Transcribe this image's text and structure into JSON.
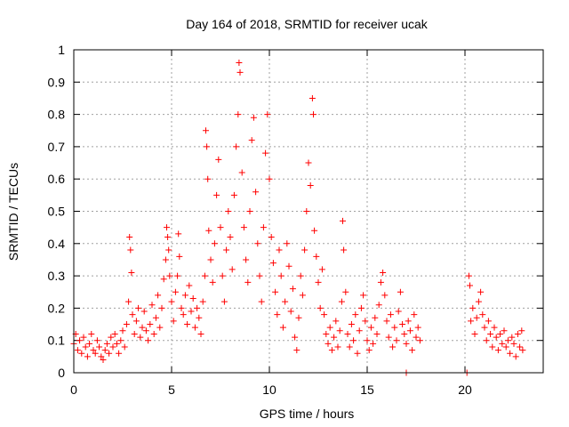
{
  "chart_data": {
    "type": "scatter",
    "title": "Day 164 of 2018, SRMTID for receiver ucak",
    "xlabel": "GPS time / hours",
    "ylabel": "SRMTID / TECUs",
    "xlim": [
      0,
      24
    ],
    "ylim": [
      0,
      1
    ],
    "grid": true,
    "marker": "+",
    "color": "#ff0000",
    "x_ticks": [
      "0",
      "5",
      "10",
      "15",
      "20"
    ],
    "x_tick_values": [
      0,
      5,
      10,
      15,
      20
    ],
    "y_ticks": [
      "0",
      "0.1",
      "0.2",
      "0.3",
      "0.4",
      "0.5",
      "0.6",
      "0.7",
      "0.8",
      "0.9",
      "1"
    ],
    "y_tick_values": [
      0,
      0.1,
      0.2,
      0.3,
      0.4,
      0.5,
      0.6,
      0.7,
      0.8,
      0.9,
      1
    ],
    "series": [
      {
        "name": "SRMTID",
        "points": [
          [
            0.0,
            0.09
          ],
          [
            0.1,
            0.12
          ],
          [
            0.2,
            0.07
          ],
          [
            0.3,
            0.1
          ],
          [
            0.4,
            0.06
          ],
          [
            0.5,
            0.11
          ],
          [
            0.6,
            0.08
          ],
          [
            0.7,
            0.05
          ],
          [
            0.8,
            0.09
          ],
          [
            0.9,
            0.12
          ],
          [
            1.0,
            0.07
          ],
          [
            1.1,
            0.06
          ],
          [
            1.2,
            0.1
          ],
          [
            1.3,
            0.08
          ],
          [
            1.4,
            0.05
          ],
          [
            1.5,
            0.04
          ],
          [
            1.6,
            0.07
          ],
          [
            1.7,
            0.09
          ],
          [
            1.8,
            0.06
          ],
          [
            1.9,
            0.11
          ],
          [
            2.0,
            0.08
          ],
          [
            2.1,
            0.12
          ],
          [
            2.2,
            0.09
          ],
          [
            2.3,
            0.06
          ],
          [
            2.4,
            0.1
          ],
          [
            2.5,
            0.13
          ],
          [
            2.6,
            0.08
          ],
          [
            2.7,
            0.15
          ],
          [
            2.8,
            0.22
          ],
          [
            2.85,
            0.42
          ],
          [
            2.9,
            0.38
          ],
          [
            2.95,
            0.31
          ],
          [
            3.0,
            0.18
          ],
          [
            3.1,
            0.12
          ],
          [
            3.2,
            0.16
          ],
          [
            3.3,
            0.2
          ],
          [
            3.4,
            0.11
          ],
          [
            3.5,
            0.14
          ],
          [
            3.6,
            0.19
          ],
          [
            3.7,
            0.13
          ],
          [
            3.8,
            0.1
          ],
          [
            3.9,
            0.15
          ],
          [
            4.0,
            0.21
          ],
          [
            4.1,
            0.12
          ],
          [
            4.2,
            0.17
          ],
          [
            4.3,
            0.24
          ],
          [
            4.4,
            0.14
          ],
          [
            4.5,
            0.2
          ],
          [
            4.6,
            0.29
          ],
          [
            4.7,
            0.35
          ],
          [
            4.75,
            0.45
          ],
          [
            4.8,
            0.42
          ],
          [
            4.85,
            0.38
          ],
          [
            4.9,
            0.3
          ],
          [
            5.0,
            0.22
          ],
          [
            5.1,
            0.16
          ],
          [
            5.2,
            0.25
          ],
          [
            5.3,
            0.3
          ],
          [
            5.35,
            0.43
          ],
          [
            5.4,
            0.36
          ],
          [
            5.5,
            0.2
          ],
          [
            5.6,
            0.18
          ],
          [
            5.7,
            0.24
          ],
          [
            5.8,
            0.15
          ],
          [
            5.9,
            0.27
          ],
          [
            6.0,
            0.19
          ],
          [
            6.1,
            0.23
          ],
          [
            6.2,
            0.14
          ],
          [
            6.3,
            0.2
          ],
          [
            6.4,
            0.17
          ],
          [
            6.5,
            0.12
          ],
          [
            6.6,
            0.22
          ],
          [
            6.7,
            0.3
          ],
          [
            6.75,
            0.75
          ],
          [
            6.8,
            0.7
          ],
          [
            6.85,
            0.6
          ],
          [
            6.9,
            0.44
          ],
          [
            7.0,
            0.35
          ],
          [
            7.1,
            0.28
          ],
          [
            7.2,
            0.4
          ],
          [
            7.3,
            0.55
          ],
          [
            7.4,
            0.66
          ],
          [
            7.5,
            0.45
          ],
          [
            7.6,
            0.3
          ],
          [
            7.7,
            0.22
          ],
          [
            7.8,
            0.38
          ],
          [
            7.9,
            0.5
          ],
          [
            8.0,
            0.42
          ],
          [
            8.1,
            0.32
          ],
          [
            8.2,
            0.55
          ],
          [
            8.3,
            0.7
          ],
          [
            8.4,
            0.8
          ],
          [
            8.45,
            0.96
          ],
          [
            8.5,
            0.93
          ],
          [
            8.6,
            0.62
          ],
          [
            8.7,
            0.45
          ],
          [
            8.8,
            0.35
          ],
          [
            8.9,
            0.28
          ],
          [
            9.0,
            0.5
          ],
          [
            9.1,
            0.72
          ],
          [
            9.2,
            0.79
          ],
          [
            9.3,
            0.56
          ],
          [
            9.4,
            0.4
          ],
          [
            9.5,
            0.3
          ],
          [
            9.6,
            0.22
          ],
          [
            9.7,
            0.45
          ],
          [
            9.8,
            0.68
          ],
          [
            9.9,
            0.8
          ],
          [
            10.0,
            0.6
          ],
          [
            10.1,
            0.42
          ],
          [
            10.2,
            0.34
          ],
          [
            10.3,
            0.25
          ],
          [
            10.4,
            0.18
          ],
          [
            10.5,
            0.38
          ],
          [
            10.6,
            0.3
          ],
          [
            10.7,
            0.14
          ],
          [
            10.8,
            0.22
          ],
          [
            10.9,
            0.4
          ],
          [
            11.0,
            0.33
          ],
          [
            11.1,
            0.19
          ],
          [
            11.2,
            0.26
          ],
          [
            11.3,
            0.11
          ],
          [
            11.4,
            0.07
          ],
          [
            11.5,
            0.17
          ],
          [
            11.6,
            0.3
          ],
          [
            11.7,
            0.24
          ],
          [
            11.8,
            0.38
          ],
          [
            11.9,
            0.5
          ],
          [
            12.0,
            0.65
          ],
          [
            12.1,
            0.58
          ],
          [
            12.2,
            0.85
          ],
          [
            12.25,
            0.8
          ],
          [
            12.3,
            0.44
          ],
          [
            12.4,
            0.36
          ],
          [
            12.5,
            0.28
          ],
          [
            12.6,
            0.2
          ],
          [
            12.7,
            0.32
          ],
          [
            12.8,
            0.18
          ],
          [
            12.9,
            0.12
          ],
          [
            13.0,
            0.09
          ],
          [
            13.1,
            0.14
          ],
          [
            13.2,
            0.07
          ],
          [
            13.3,
            0.11
          ],
          [
            13.4,
            0.16
          ],
          [
            13.5,
            0.08
          ],
          [
            13.6,
            0.13
          ],
          [
            13.7,
            0.22
          ],
          [
            13.75,
            0.47
          ],
          [
            13.8,
            0.38
          ],
          [
            13.9,
            0.25
          ],
          [
            14.0,
            0.12
          ],
          [
            14.1,
            0.08
          ],
          [
            14.2,
            0.15
          ],
          [
            14.3,
            0.1
          ],
          [
            14.4,
            0.18
          ],
          [
            14.5,
            0.06
          ],
          [
            14.6,
            0.13
          ],
          [
            14.7,
            0.2
          ],
          [
            14.8,
            0.24
          ],
          [
            14.9,
            0.16
          ],
          [
            15.0,
            0.1
          ],
          [
            15.1,
            0.07
          ],
          [
            15.2,
            0.14
          ],
          [
            15.3,
            0.09
          ],
          [
            15.4,
            0.17
          ],
          [
            15.5,
            0.12
          ],
          [
            15.6,
            0.21
          ],
          [
            15.7,
            0.28
          ],
          [
            15.8,
            0.31
          ],
          [
            15.9,
            0.24
          ],
          [
            16.0,
            0.16
          ],
          [
            16.1,
            0.11
          ],
          [
            16.2,
            0.18
          ],
          [
            16.3,
            0.08
          ],
          [
            16.4,
            0.14
          ],
          [
            16.5,
            0.1
          ],
          [
            16.6,
            0.19
          ],
          [
            16.7,
            0.25
          ],
          [
            16.8,
            0.15
          ],
          [
            16.9,
            0.12
          ],
          [
            17.0,
            0.09
          ],
          [
            17.1,
            0.16
          ],
          [
            17.2,
            0.13
          ],
          [
            17.3,
            0.07
          ],
          [
            17.4,
            0.18
          ],
          [
            17.5,
            0.11
          ],
          [
            17.6,
            0.14
          ],
          [
            17.7,
            0.1
          ],
          [
            17.0,
            0.0
          ],
          [
            20.1,
            0.0
          ],
          [
            20.2,
            0.3
          ],
          [
            20.25,
            0.27
          ],
          [
            20.3,
            0.16
          ],
          [
            20.4,
            0.2
          ],
          [
            20.5,
            0.12
          ],
          [
            20.6,
            0.17
          ],
          [
            20.7,
            0.22
          ],
          [
            20.8,
            0.25
          ],
          [
            20.9,
            0.18
          ],
          [
            21.0,
            0.14
          ],
          [
            21.1,
            0.1
          ],
          [
            21.2,
            0.16
          ],
          [
            21.3,
            0.12
          ],
          [
            21.4,
            0.08
          ],
          [
            21.5,
            0.14
          ],
          [
            21.6,
            0.11
          ],
          [
            21.7,
            0.07
          ],
          [
            21.8,
            0.12
          ],
          [
            21.9,
            0.09
          ],
          [
            22.0,
            0.13
          ],
          [
            22.1,
            0.08
          ],
          [
            22.2,
            0.1
          ],
          [
            22.3,
            0.06
          ],
          [
            22.4,
            0.11
          ],
          [
            22.5,
            0.09
          ],
          [
            22.6,
            0.05
          ],
          [
            22.7,
            0.12
          ],
          [
            22.8,
            0.08
          ],
          [
            22.9,
            0.13
          ],
          [
            22.95,
            0.07
          ]
        ]
      }
    ]
  }
}
